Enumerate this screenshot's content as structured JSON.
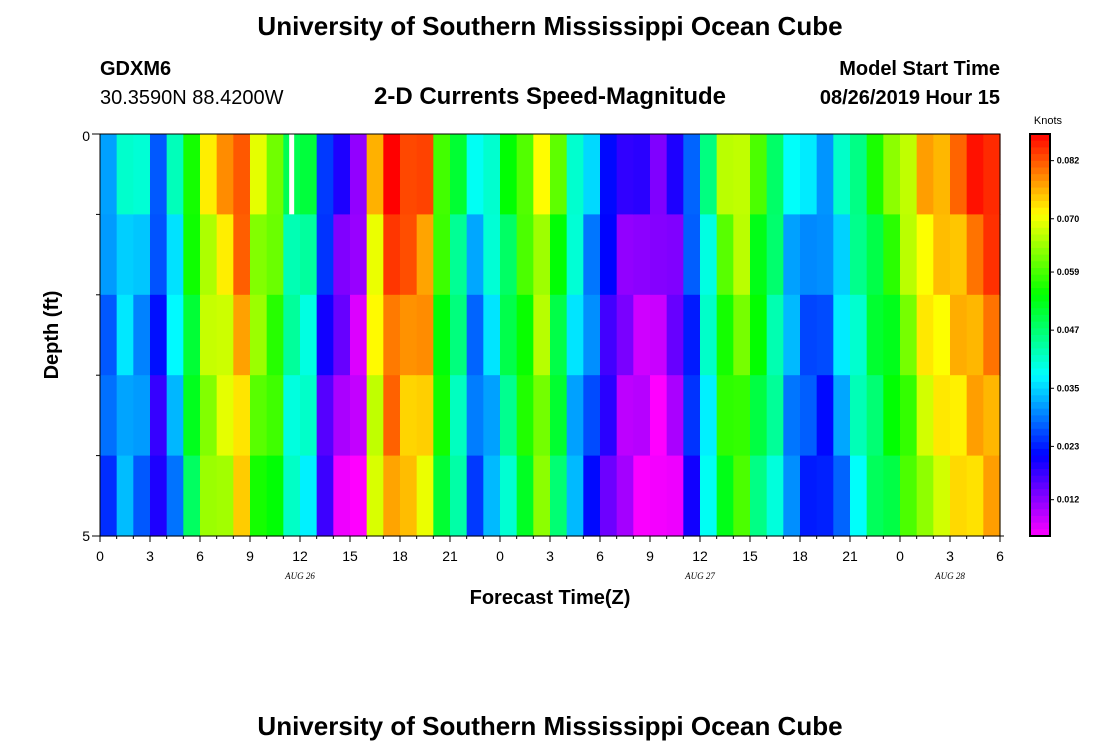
{
  "page": {
    "title": "University of Southern Mississippi Ocean Cube",
    "footer_title": "University of Southern Mississippi Ocean Cube",
    "station": "GDXM6",
    "coords": "30.3590N 88.4200W",
    "model_start_label": "Model Start Time",
    "model_start_value": "08/26/2019 Hour 15"
  },
  "chart_data": {
    "type": "heatmap",
    "title": "2-D Currents Speed-Magnitude",
    "xlabel": "Forecast Time(Z)",
    "ylabel": "Depth (ft)",
    "colorbar_label": "Knots",
    "colorbar_ticks": [
      "0.082",
      "0.070",
      "0.059",
      "0.047",
      "0.035",
      "0.023",
      "0.012"
    ],
    "colorbar_tick_values": [
      0.082,
      0.07,
      0.059,
      0.047,
      0.035,
      0.023,
      0.012
    ],
    "value_range": [
      0.0045,
      0.0875
    ],
    "x_range": [
      0,
      54
    ],
    "y_range": [
      0,
      5
    ],
    "x_tick_labels": [
      "0",
      "3",
      "6",
      "9",
      "12",
      "15",
      "18",
      "21",
      "0",
      "3",
      "6",
      "9",
      "12",
      "15",
      "18",
      "21",
      "0",
      "3",
      "6"
    ],
    "y_tick_labels": [
      "0",
      "5"
    ],
    "date_labels": [
      {
        "label": "AUG  26",
        "hour": 12
      },
      {
        "label": "AUG  27",
        "hour": 36
      },
      {
        "label": "AUG  28",
        "hour": 51
      }
    ],
    "depth_layers": 5,
    "missing_cells": [
      {
        "hour": 11,
        "layer": 0
      }
    ],
    "speed_profile": [
      0.028,
      0.035,
      0.032,
      0.022,
      0.035,
      0.052,
      0.066,
      0.07,
      0.077,
      0.062,
      0.058,
      0.043,
      0.042,
      0.02,
      0.012,
      0.008,
      0.07,
      0.082,
      0.078,
      0.076,
      0.055,
      0.045,
      0.03,
      0.036,
      0.047,
      0.056,
      0.065,
      0.052,
      0.036,
      0.028,
      0.018,
      0.012,
      0.01,
      0.008,
      0.012,
      0.024,
      0.04,
      0.058,
      0.062,
      0.052,
      0.044,
      0.032,
      0.028,
      0.026,
      0.034,
      0.042,
      0.05,
      0.055,
      0.062,
      0.07,
      0.072,
      0.075,
      0.078,
      0.08
    ],
    "layer_offsets": [
      0.006,
      0.002,
      0.0,
      -0.002,
      -0.004
    ]
  }
}
